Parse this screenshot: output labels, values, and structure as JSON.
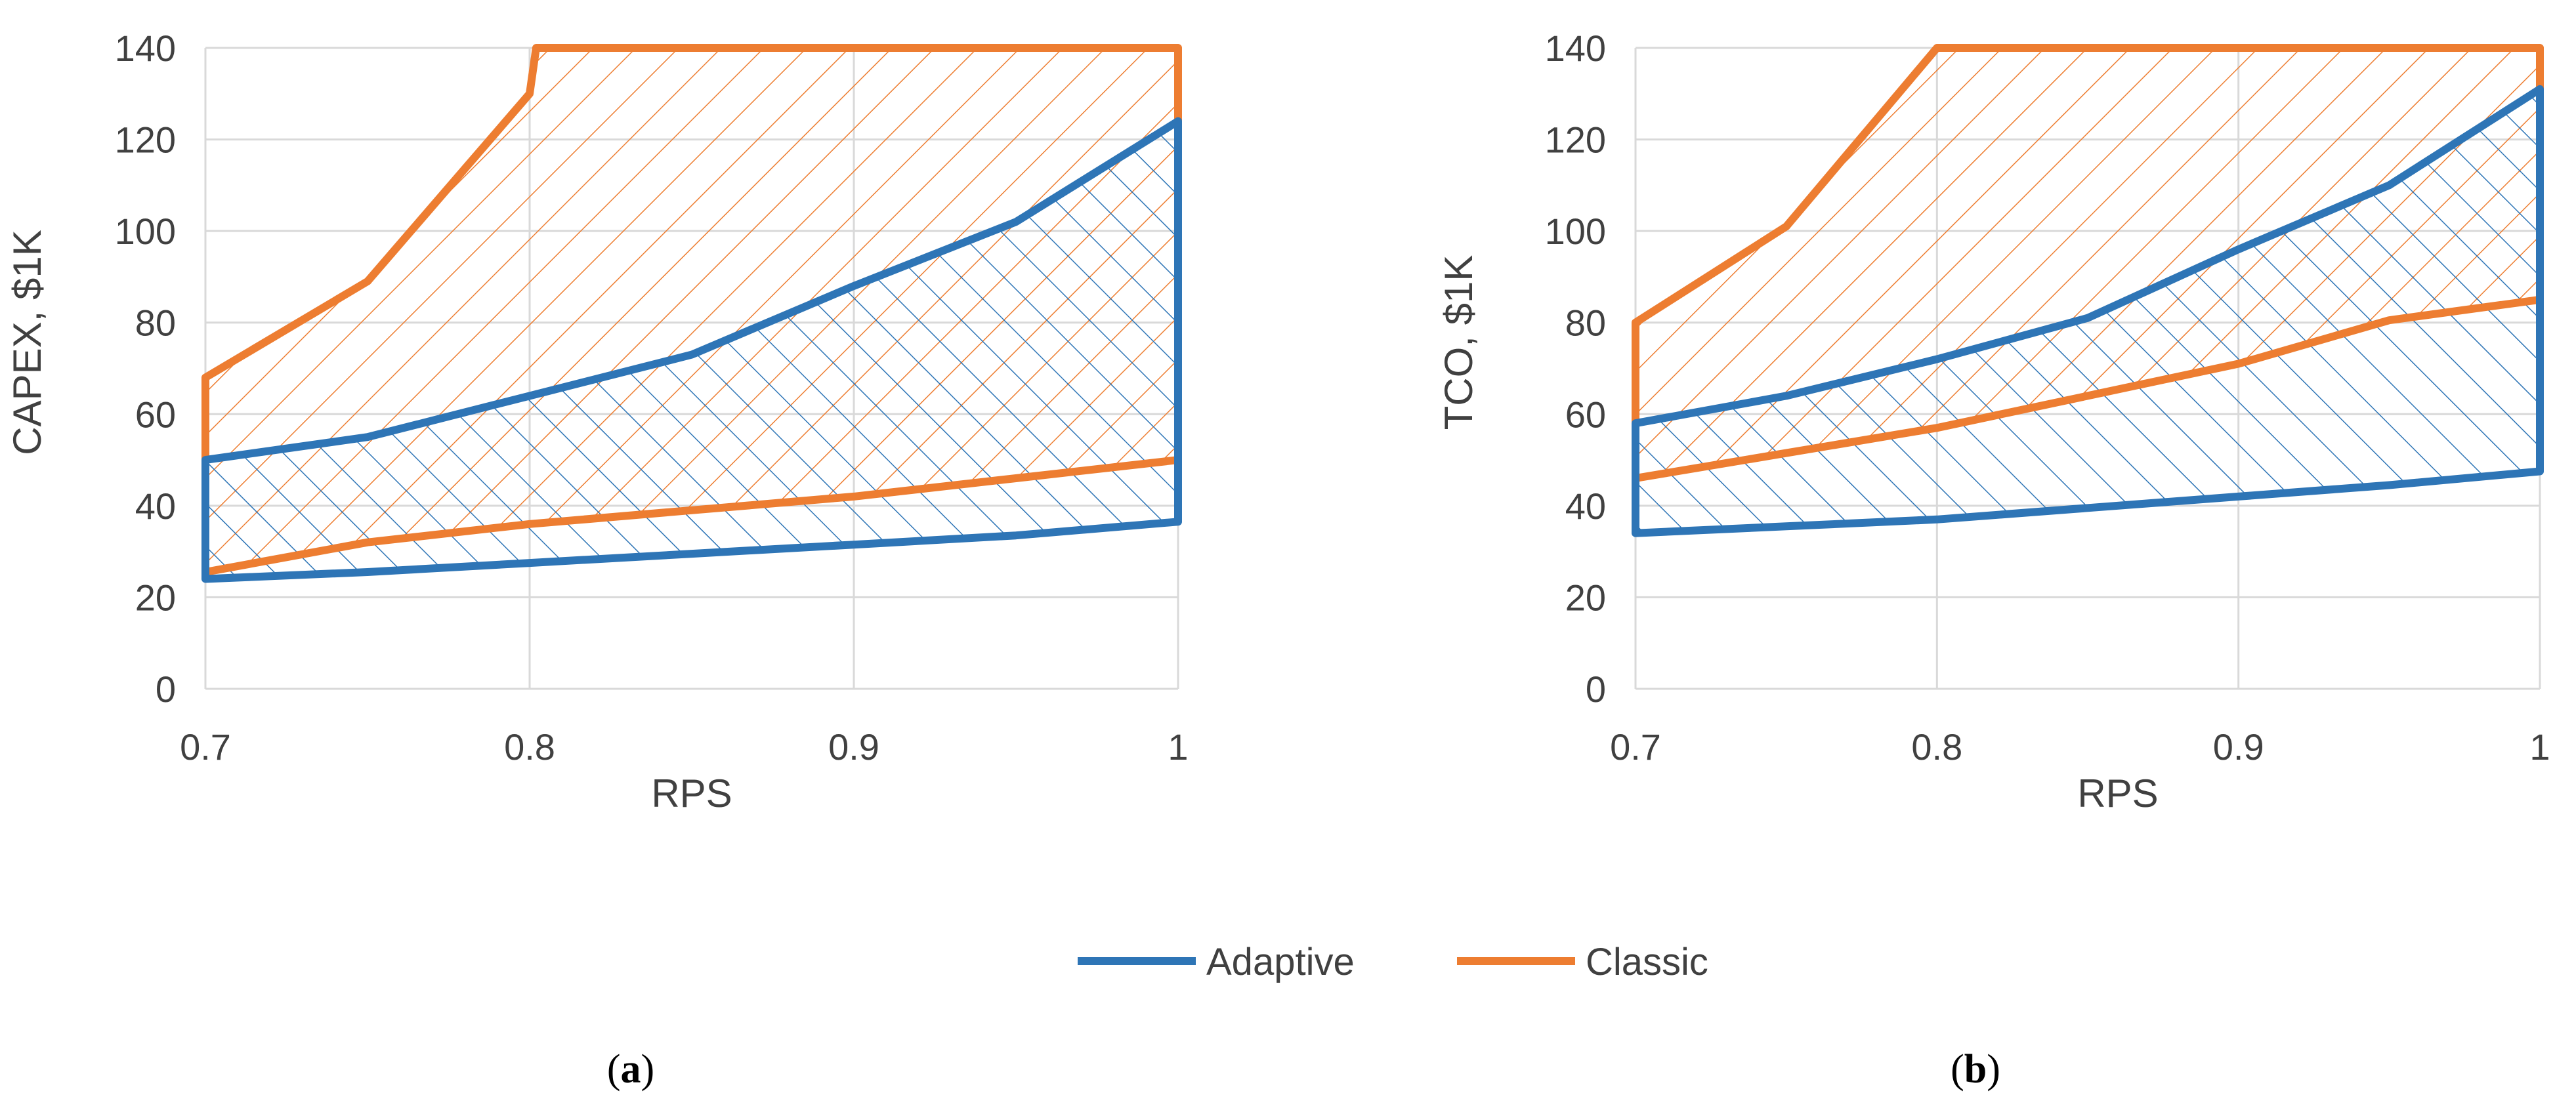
{
  "chart_data": [
    {
      "type": "area",
      "panel": "a",
      "caption_label": "a",
      "xlabel": "RPS",
      "ylabel": "CAPEX, $1K",
      "xlim": [
        0.7,
        1.0
      ],
      "ylim": [
        0,
        140
      ],
      "x_ticks": [
        0.7,
        0.8,
        0.9,
        1
      ],
      "x_tick_labels": [
        "0.7",
        "0.8",
        "0.9",
        "1"
      ],
      "y_ticks": [
        0,
        20,
        40,
        60,
        80,
        100,
        120,
        140
      ],
      "y_tick_labels": [
        "0",
        "20",
        "40",
        "60",
        "80",
        "100",
        "120",
        "140"
      ],
      "grid": true,
      "series": [
        {
          "name": "Adaptive",
          "color": "#2E75B6",
          "hatch": "backslash",
          "upper": [
            [
              0.7,
              50
            ],
            [
              0.75,
              55
            ],
            [
              0.8,
              64
            ],
            [
              0.85,
              73
            ],
            [
              0.9,
              88
            ],
            [
              0.95,
              102
            ],
            [
              1.0,
              124
            ]
          ],
          "lower": [
            [
              0.7,
              24
            ],
            [
              0.75,
              25.5
            ],
            [
              0.8,
              27.5
            ],
            [
              0.85,
              29.5
            ],
            [
              0.9,
              31.5
            ],
            [
              0.95,
              33.5
            ],
            [
              1.0,
              36.5
            ]
          ]
        },
        {
          "name": "Classic",
          "color": "#ED7D31",
          "hatch": "slash",
          "upper": [
            [
              0.7,
              68
            ],
            [
              0.75,
              89
            ],
            [
              0.8,
              130
            ],
            [
              0.802,
              140
            ],
            [
              1.0,
              140
            ]
          ],
          "lower": [
            [
              0.7,
              25.5
            ],
            [
              0.75,
              32
            ],
            [
              0.8,
              36
            ],
            [
              0.85,
              39
            ],
            [
              0.9,
              42
            ],
            [
              0.95,
              46
            ],
            [
              1.0,
              50
            ]
          ]
        }
      ]
    },
    {
      "type": "area",
      "panel": "b",
      "caption_label": "b",
      "xlabel": "RPS",
      "ylabel": "TCO, $1K",
      "xlim": [
        0.7,
        1.0
      ],
      "ylim": [
        0,
        140
      ],
      "x_ticks": [
        0.7,
        0.8,
        0.9,
        1
      ],
      "x_tick_labels": [
        "0.7",
        "0.8",
        "0.9",
        "1"
      ],
      "y_ticks": [
        0,
        20,
        40,
        60,
        80,
        100,
        120,
        140
      ],
      "y_tick_labels": [
        "0",
        "20",
        "40",
        "60",
        "80",
        "100",
        "120",
        "140"
      ],
      "grid": true,
      "series": [
        {
          "name": "Adaptive",
          "color": "#2E75B6",
          "hatch": "backslash",
          "upper": [
            [
              0.7,
              58
            ],
            [
              0.75,
              64
            ],
            [
              0.8,
              72
            ],
            [
              0.85,
              81
            ],
            [
              0.9,
              96
            ],
            [
              0.95,
              110
            ],
            [
              1.0,
              131
            ]
          ],
          "lower": [
            [
              0.7,
              34
            ],
            [
              0.75,
              35.5
            ],
            [
              0.8,
              37
            ],
            [
              0.85,
              39.5
            ],
            [
              0.9,
              42
            ],
            [
              0.95,
              44.5
            ],
            [
              1.0,
              47.5
            ]
          ]
        },
        {
          "name": "Classic",
          "color": "#ED7D31",
          "hatch": "slash",
          "upper": [
            [
              0.7,
              80
            ],
            [
              0.75,
              101
            ],
            [
              0.8,
              140
            ],
            [
              1.0,
              140
            ]
          ],
          "lower": [
            [
              0.7,
              46
            ],
            [
              0.75,
              51.5
            ],
            [
              0.8,
              57
            ],
            [
              0.85,
              64
            ],
            [
              0.9,
              71
            ],
            [
              0.95,
              80.5
            ],
            [
              1.0,
              85
            ]
          ]
        }
      ]
    }
  ],
  "legend": {
    "position": "bottom-center",
    "entries": [
      {
        "label": "Adaptive",
        "color": "#2E75B6"
      },
      {
        "label": "Classic",
        "color": "#ED7D31"
      }
    ]
  },
  "captions": [
    {
      "prefix": "(",
      "label": "a",
      "suffix": ")"
    },
    {
      "prefix": "(",
      "label": "b",
      "suffix": ")"
    }
  ]
}
